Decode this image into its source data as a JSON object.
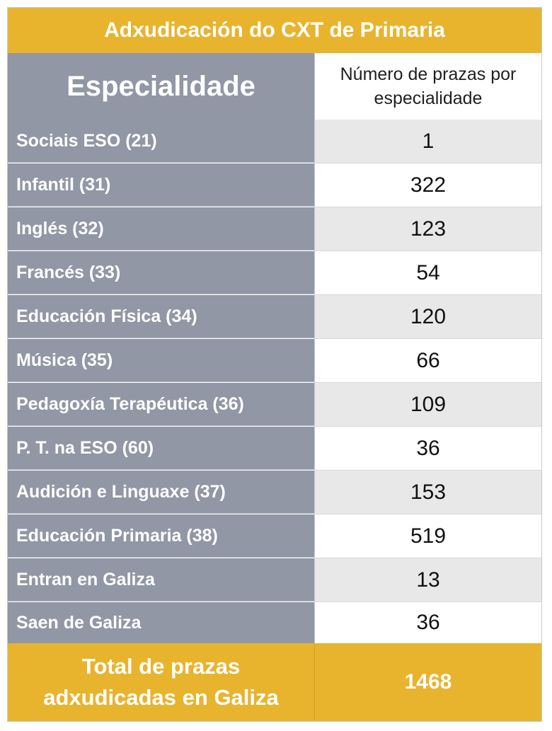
{
  "title": "Adxudicación do CXT de Primaria",
  "header": {
    "col1": "Especialidade",
    "col2": "Número de prazas por especialidade"
  },
  "rows": [
    {
      "name": "Sociais ESO (21)",
      "value": "1"
    },
    {
      "name": "Infantil (31)",
      "value": "322"
    },
    {
      "name": "Inglés (32)",
      "value": "123"
    },
    {
      "name": "Francés (33)",
      "value": "54"
    },
    {
      "name": "Educación Física (34)",
      "value": "120"
    },
    {
      "name": "Música (35)",
      "value": "66"
    },
    {
      "name": "Pedagoxía Terapéutica (36)",
      "value": "109"
    },
    {
      "name": "P. T. na ESO (60)",
      "value": "36"
    },
    {
      "name": "Audición e Linguaxe (37)",
      "value": "153"
    },
    {
      "name": "Educación Primaria (38)",
      "value": "519"
    },
    {
      "name": "Entran en Galiza",
      "value": "13"
    },
    {
      "name": "Saen de Galiza",
      "value": "36"
    }
  ],
  "total": {
    "label": "Total de prazas adxudicadas en Galiza",
    "value": "1468"
  },
  "colors": {
    "accent": "#e8b42e",
    "label_column": "#9197a4",
    "shaded_cell": "#e8e8e8"
  }
}
